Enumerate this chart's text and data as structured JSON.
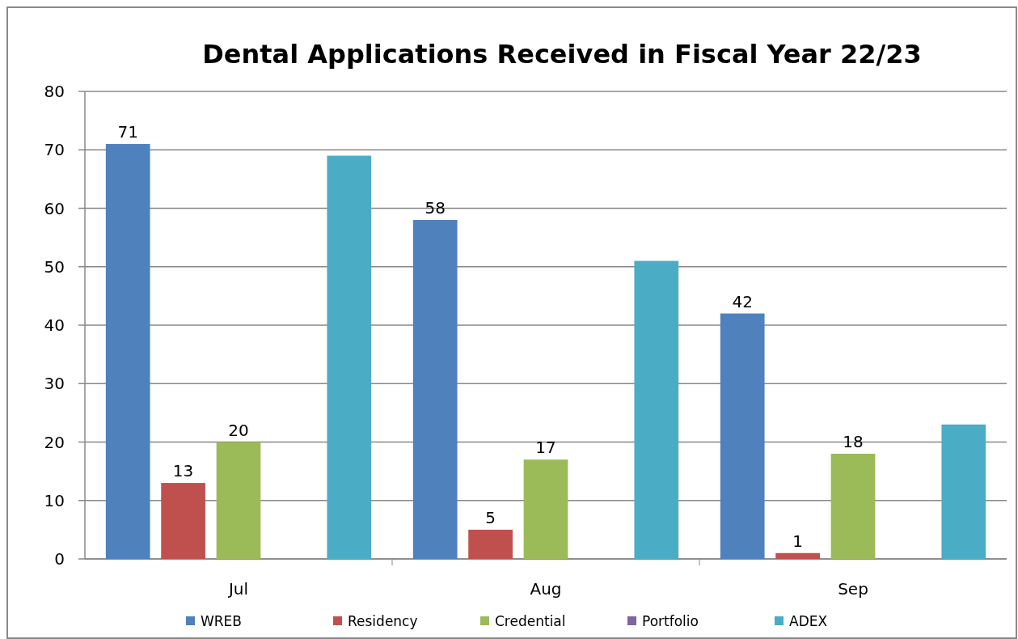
{
  "chart_data": {
    "type": "bar",
    "title": "Dental Applications Received in Fiscal Year 22/23",
    "categories": [
      "Jul",
      "Aug",
      "Sep"
    ],
    "series": [
      {
        "name": "WREB",
        "color": "#4f81bd",
        "values": [
          71,
          58,
          42
        ],
        "value_labels": [
          "71",
          "58",
          "42"
        ]
      },
      {
        "name": "Residency",
        "color": "#c0504d",
        "values": [
          13,
          5,
          1
        ],
        "value_labels": [
          "13",
          "5",
          "1"
        ]
      },
      {
        "name": "Credential",
        "color": "#9bbb59",
        "values": [
          20,
          17,
          18
        ],
        "value_labels": [
          "20",
          "17",
          "18"
        ]
      },
      {
        "name": "Portfolio",
        "color": "#8064a2",
        "values": [
          0,
          0,
          0
        ],
        "value_labels": [
          null,
          null,
          null
        ]
      },
      {
        "name": "ADEX",
        "color": "#4bacc6",
        "values": [
          69,
          51,
          23
        ],
        "value_labels": [
          null,
          null,
          null
        ]
      }
    ],
    "ylim": [
      0,
      80
    ],
    "yticks": [
      0,
      10,
      20,
      30,
      40,
      50,
      60,
      70,
      80
    ],
    "grid": "y",
    "legend": "bottom"
  }
}
